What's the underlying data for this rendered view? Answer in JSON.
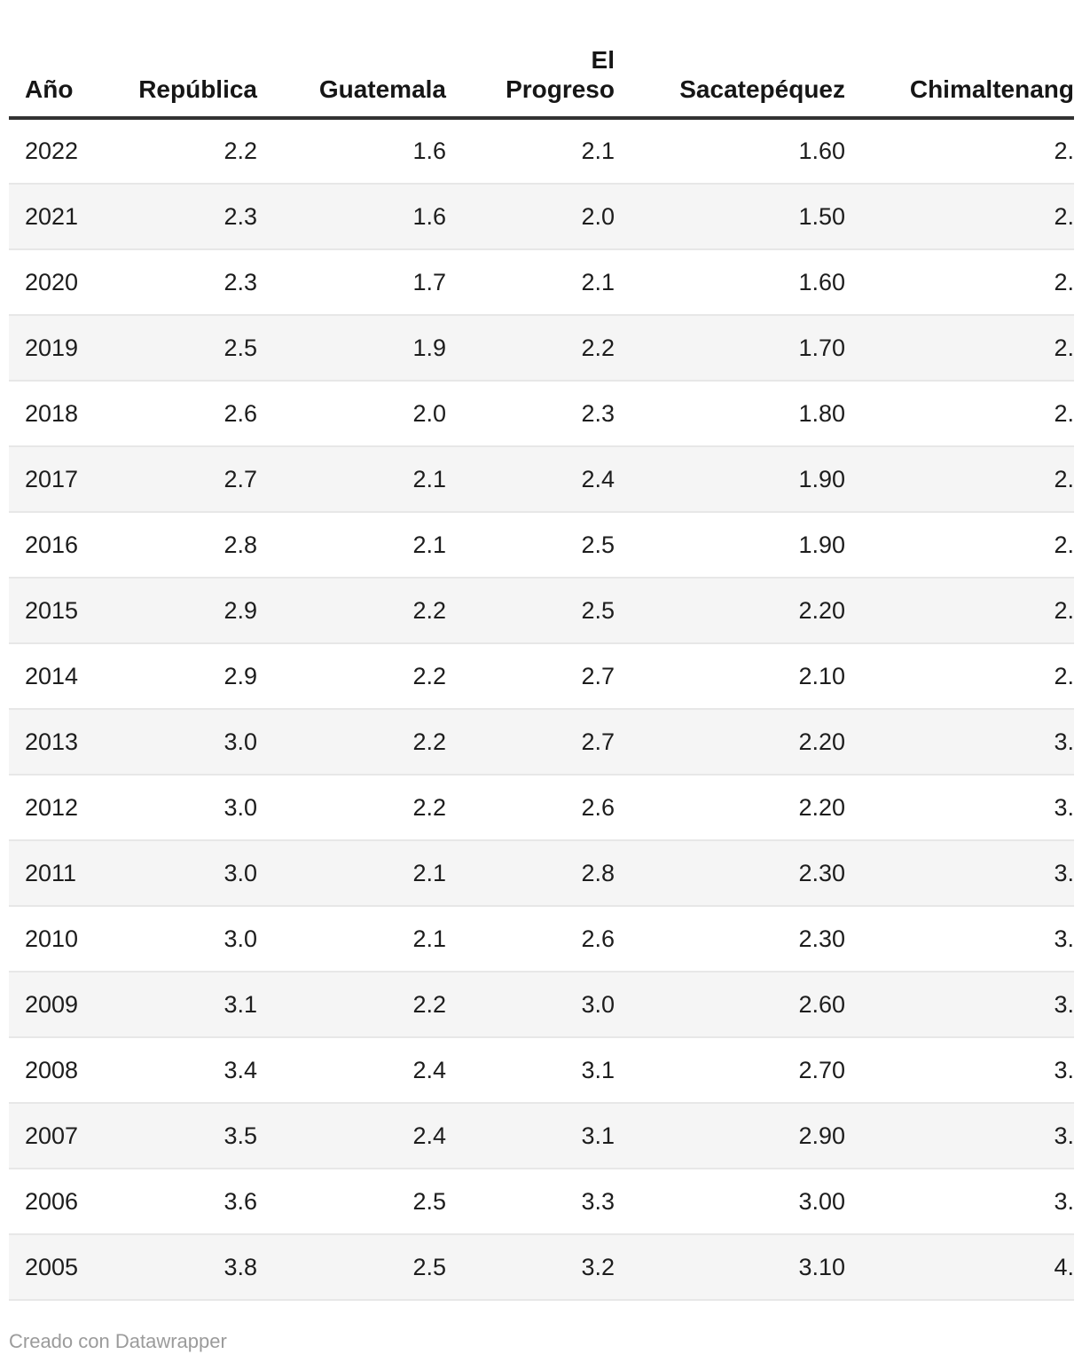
{
  "chart_data": {
    "type": "table",
    "columns": [
      "Año",
      "República",
      "Guatemala",
      "El Progreso",
      "Sacatepéquez",
      "Chimaltenang"
    ],
    "rows": [
      [
        "2022",
        "2.2",
        "1.6",
        "2.1",
        "1.60",
        "2."
      ],
      [
        "2021",
        "2.3",
        "1.6",
        "2.0",
        "1.50",
        "2."
      ],
      [
        "2020",
        "2.3",
        "1.7",
        "2.1",
        "1.60",
        "2."
      ],
      [
        "2019",
        "2.5",
        "1.9",
        "2.2",
        "1.70",
        "2."
      ],
      [
        "2018",
        "2.6",
        "2.0",
        "2.3",
        "1.80",
        "2."
      ],
      [
        "2017",
        "2.7",
        "2.1",
        "2.4",
        "1.90",
        "2."
      ],
      [
        "2016",
        "2.8",
        "2.1",
        "2.5",
        "1.90",
        "2."
      ],
      [
        "2015",
        "2.9",
        "2.2",
        "2.5",
        "2.20",
        "2."
      ],
      [
        "2014",
        "2.9",
        "2.2",
        "2.7",
        "2.10",
        "2."
      ],
      [
        "2013",
        "3.0",
        "2.2",
        "2.7",
        "2.20",
        "3."
      ],
      [
        "2012",
        "3.0",
        "2.2",
        "2.6",
        "2.20",
        "3."
      ],
      [
        "2011",
        "3.0",
        "2.1",
        "2.8",
        "2.30",
        "3."
      ],
      [
        "2010",
        "3.0",
        "2.1",
        "2.6",
        "2.30",
        "3."
      ],
      [
        "2009",
        "3.1",
        "2.2",
        "3.0",
        "2.60",
        "3."
      ],
      [
        "2008",
        "3.4",
        "2.4",
        "3.1",
        "2.70",
        "3."
      ],
      [
        "2007",
        "3.5",
        "2.4",
        "3.1",
        "2.90",
        "3."
      ],
      [
        "2006",
        "3.6",
        "2.5",
        "3.3",
        "3.00",
        "3."
      ],
      [
        "2005",
        "3.8",
        "2.5",
        "3.2",
        "3.10",
        "4."
      ]
    ],
    "layout": {
      "zebra_striping": true,
      "last_column_clipped_at_right_edge": true,
      "header_rule": true
    }
  },
  "footer": {
    "credit": "Creado con Datawrapper"
  },
  "colors": {
    "header_text": "#161616",
    "body_text": "#1d1d1d",
    "header_rule": "#333333",
    "row_border": "#e7e7e7",
    "zebra_row_background": "#f5f5f5",
    "footer_text": "#9b9b9b",
    "page_background": "#ffffff"
  }
}
